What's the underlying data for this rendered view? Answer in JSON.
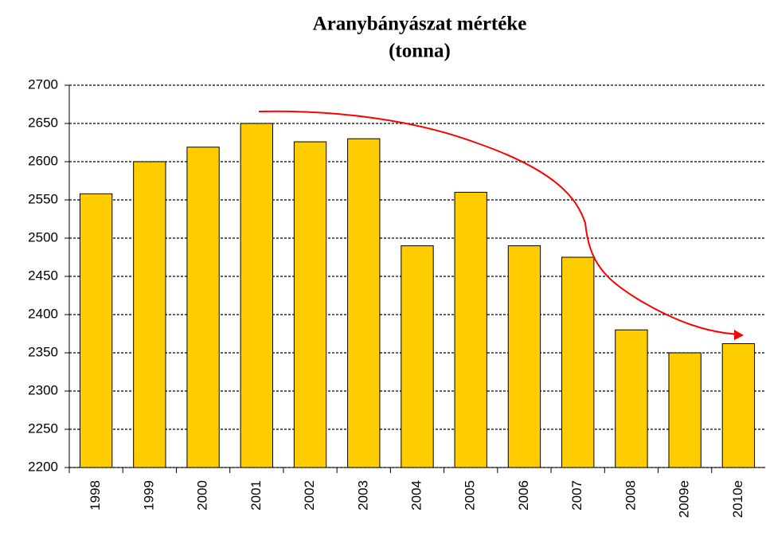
{
  "chart_data": {
    "type": "bar",
    "title": "Aranybányászat mértéke",
    "subtitle": "(tonna)",
    "categories": [
      "1998",
      "1999",
      "2000",
      "2001",
      "2002",
      "2003",
      "2004",
      "2005",
      "2006",
      "2007",
      "2008",
      "2009e",
      "2010e"
    ],
    "values": [
      2558,
      2600,
      2619,
      2650,
      2626,
      2630,
      2490,
      2560,
      2490,
      2475,
      2380,
      2350,
      2362
    ],
    "color": "#ffcc00",
    "ylim": [
      2200,
      2700
    ],
    "yticks": [
      2200,
      2250,
      2300,
      2350,
      2400,
      2450,
      2500,
      2550,
      2600,
      2650,
      2700
    ],
    "grid": true
  }
}
